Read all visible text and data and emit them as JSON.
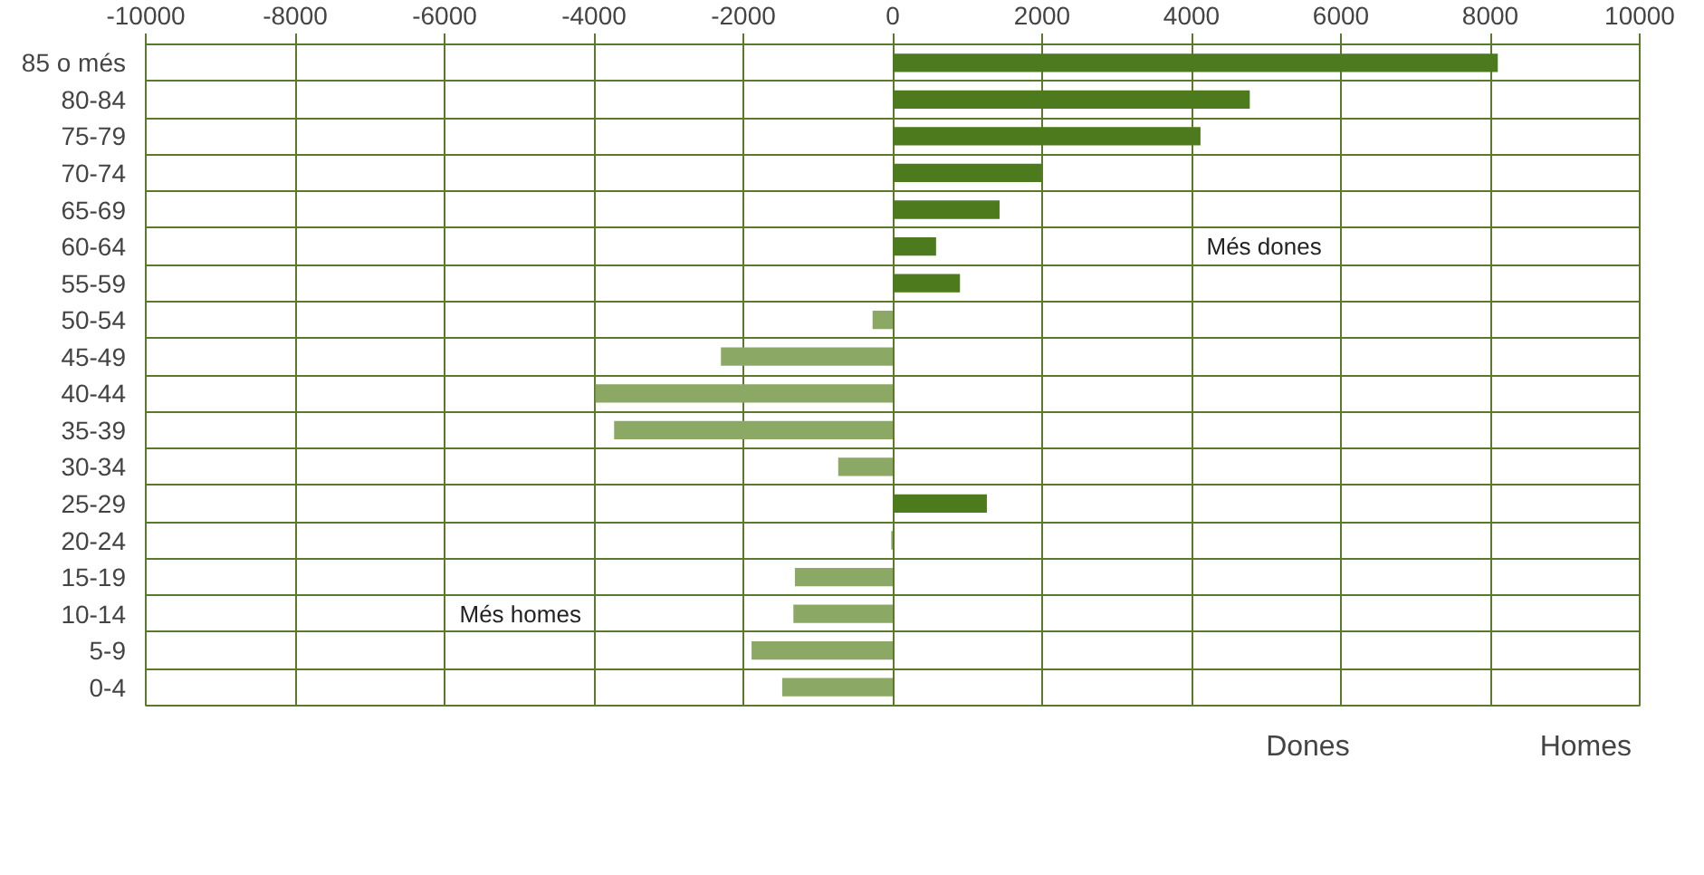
{
  "chart_data": {
    "type": "bar",
    "orientation": "horizontal",
    "stacked": true,
    "categories": [
      "85 o més",
      "80-84",
      "75-79",
      "70-74",
      "65-69",
      "60-64",
      "55-59",
      "50-54",
      "45-49",
      "40-44",
      "35-39",
      "30-34",
      "25-29",
      "20-24",
      "15-19",
      "10-14",
      "5-9",
      "0-4"
    ],
    "series": [
      {
        "name": "Dones",
        "color": "#4e7a1e",
        "values": [
          8100,
          4780,
          4120,
          2000,
          1430,
          580,
          900,
          null,
          null,
          null,
          null,
          null,
          1260,
          null,
          null,
          null,
          null,
          null
        ]
      },
      {
        "name": "Homes",
        "color": "#8ca865",
        "values": [
          null,
          null,
          null,
          null,
          null,
          null,
          null,
          -270,
          -2300,
          -3980,
          -3730,
          -730,
          null,
          -20,
          -1310,
          -1330,
          -1890,
          -1480
        ]
      }
    ],
    "xlim": [
      -10000,
      10000
    ],
    "xticks": [
      -10000,
      -8000,
      -6000,
      -4000,
      -2000,
      0,
      2000,
      4000,
      6000,
      8000,
      10000
    ],
    "grid": true,
    "legend": "bottom right",
    "annotations": [
      "Més dones",
      "Més homes"
    ]
  }
}
